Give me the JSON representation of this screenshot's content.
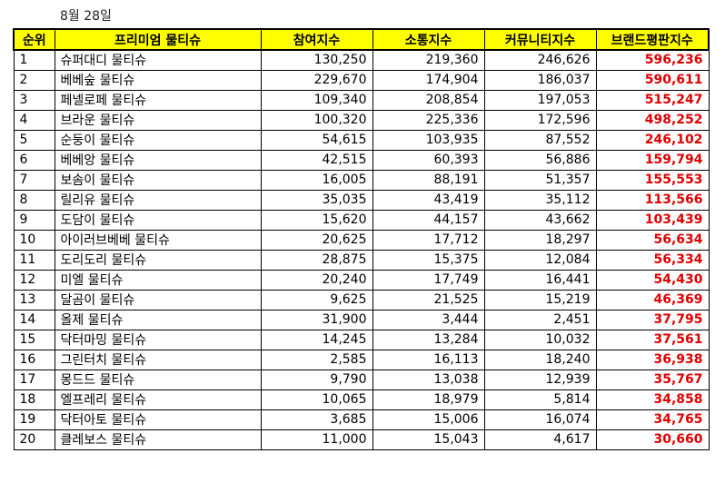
{
  "caption": "8월 28일",
  "headers": [
    "순위",
    "프리미엄 물티슈",
    "참여지수",
    "소통지수",
    "커뮤니티지수",
    "브랜드평판지수"
  ],
  "rows": [
    {
      "rank": "1",
      "brand": "슈퍼대디 물티슈",
      "participation": "130,250",
      "communication": "219,360",
      "community": "246,626",
      "reputation": "596,236"
    },
    {
      "rank": "2",
      "brand": "베베숲 물티슈",
      "participation": "229,670",
      "communication": "174,904",
      "community": "186,037",
      "reputation": "590,611"
    },
    {
      "rank": "3",
      "brand": "페넬로페 물티슈",
      "participation": "109,340",
      "communication": "208,854",
      "community": "197,053",
      "reputation": "515,247"
    },
    {
      "rank": "4",
      "brand": "브라운 물티슈",
      "participation": "100,320",
      "communication": "225,336",
      "community": "172,596",
      "reputation": "498,252"
    },
    {
      "rank": "5",
      "brand": "순둥이 물티슈",
      "participation": "54,615",
      "communication": "103,935",
      "community": "87,552",
      "reputation": "246,102"
    },
    {
      "rank": "6",
      "brand": "베베앙 물티슈",
      "participation": "42,515",
      "communication": "60,393",
      "community": "56,886",
      "reputation": "159,794"
    },
    {
      "rank": "7",
      "brand": "보솜이 물티슈",
      "participation": "16,005",
      "communication": "88,191",
      "community": "51,357",
      "reputation": "155,553"
    },
    {
      "rank": "8",
      "brand": "릴리유 물티슈",
      "participation": "35,035",
      "communication": "43,419",
      "community": "35,112",
      "reputation": "113,566"
    },
    {
      "rank": "9",
      "brand": "도담이 물티슈",
      "participation": "15,620",
      "communication": "44,157",
      "community": "43,662",
      "reputation": "103,439"
    },
    {
      "rank": "10",
      "brand": "아이러브베베 물티슈",
      "participation": "20,625",
      "communication": "17,712",
      "community": "18,297",
      "reputation": "56,634"
    },
    {
      "rank": "11",
      "brand": "도리도리 물티슈",
      "participation": "28,875",
      "communication": "15,375",
      "community": "12,084",
      "reputation": "56,334"
    },
    {
      "rank": "12",
      "brand": "미엘 물티슈",
      "participation": "20,240",
      "communication": "17,749",
      "community": "16,441",
      "reputation": "54,430"
    },
    {
      "rank": "13",
      "brand": "달곰이 물티슈",
      "participation": "9,625",
      "communication": "21,525",
      "community": "15,219",
      "reputation": "46,369"
    },
    {
      "rank": "14",
      "brand": "올제 물티슈",
      "participation": "31,900",
      "communication": "3,444",
      "community": "2,451",
      "reputation": "37,795"
    },
    {
      "rank": "15",
      "brand": "닥터마밍 물티슈",
      "participation": "14,245",
      "communication": "13,284",
      "community": "10,032",
      "reputation": "37,561"
    },
    {
      "rank": "16",
      "brand": "그린터치 물티슈",
      "participation": "2,585",
      "communication": "16,113",
      "community": "18,240",
      "reputation": "36,938"
    },
    {
      "rank": "17",
      "brand": "몽드드 물티슈",
      "participation": "9,790",
      "communication": "13,038",
      "community": "12,939",
      "reputation": "35,767"
    },
    {
      "rank": "18",
      "brand": "엘프레리 물티슈",
      "participation": "10,065",
      "communication": "18,979",
      "community": "5,814",
      "reputation": "34,858"
    },
    {
      "rank": "19",
      "brand": "닥터아토 물티슈",
      "participation": "3,685",
      "communication": "15,006",
      "community": "16,074",
      "reputation": "34,765"
    },
    {
      "rank": "20",
      "brand": "클레보스 물티슈",
      "participation": "11,000",
      "communication": "15,043",
      "community": "4,617",
      "reputation": "30,660"
    }
  ],
  "colors": {
    "header_bg": "#ffff00",
    "reputation_text": "#e00000"
  }
}
